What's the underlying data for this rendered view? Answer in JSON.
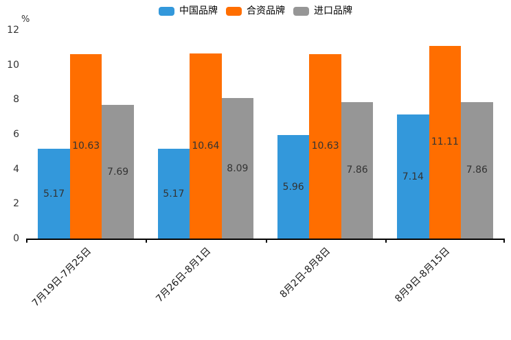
{
  "chart_data": {
    "type": "bar",
    "title": "",
    "unit_label": "%",
    "xlabel": "",
    "ylabel": "%",
    "categories": [
      "7月19日-7月25日",
      "7月26日-8月1日",
      "8月2日-8月8日",
      "8月9日-8月15日"
    ],
    "series": [
      {
        "name": "中国品牌",
        "color": "#3398DB",
        "values": [
          5.17,
          5.17,
          5.96,
          7.14
        ]
      },
      {
        "name": "合资品牌",
        "color": "#FF6E00",
        "values": [
          10.63,
          10.64,
          10.63,
          11.11
        ]
      },
      {
        "name": "进口品牌",
        "color": "#969696",
        "values": [
          7.69,
          8.09,
          7.86,
          7.86
        ]
      }
    ],
    "ylim": [
      0,
      12
    ],
    "yticks": [
      0,
      2,
      4,
      6,
      8,
      10,
      12
    ],
    "grid": false,
    "legend_position": "top-center",
    "colors": {
      "axis": "#000000",
      "tick_label": "#333333",
      "bar_value_label": "#333333",
      "category_label": "#1a1a1a"
    }
  }
}
